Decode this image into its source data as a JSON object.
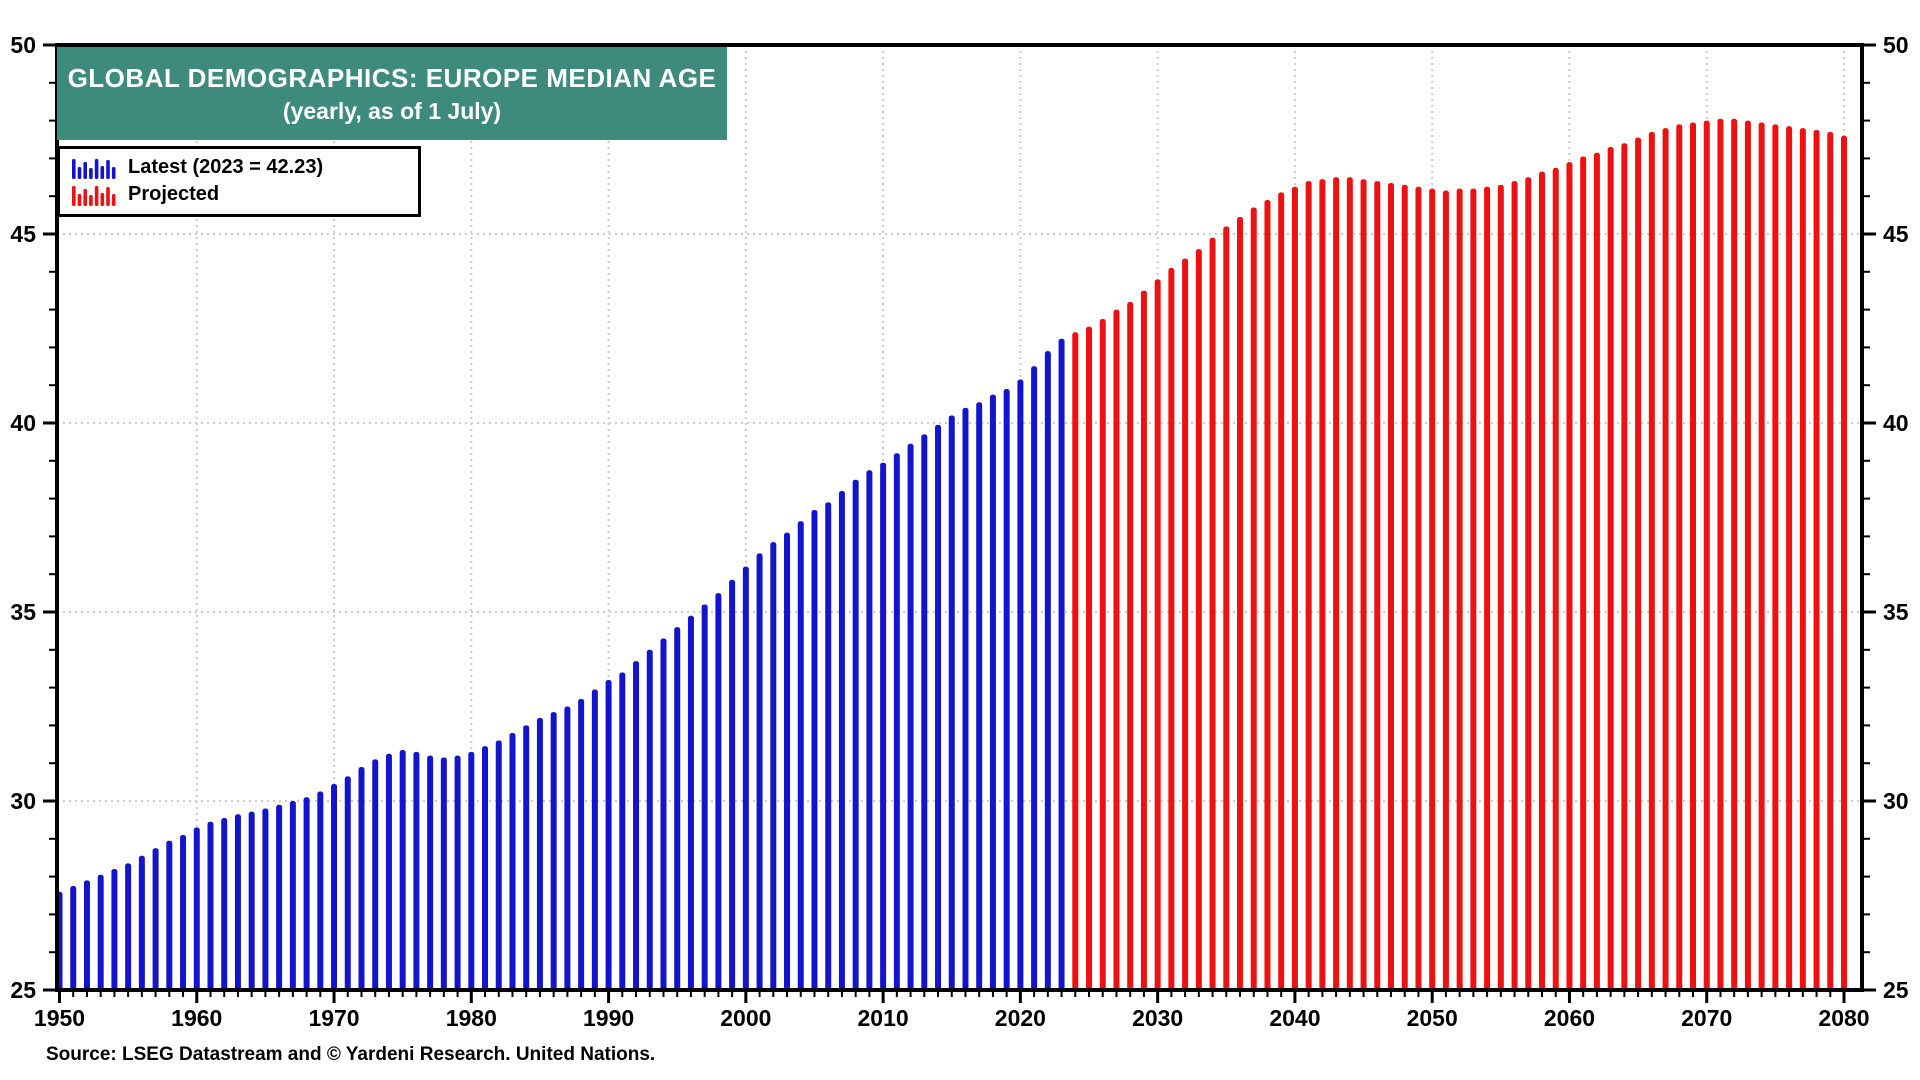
{
  "header": {
    "title": "GLOBAL DEMOGRAPHICS: EUROPE MEDIAN AGE",
    "subtitle": "(yearly, as of 1 July)"
  },
  "legend": {
    "items": [
      {
        "label": "Latest (2023 = 42.23)",
        "color": "#1414CC",
        "icon": "mini-bars-blue-icon"
      },
      {
        "label": "Projected",
        "color": "#EE1111",
        "icon": "mini-bars-red-icon"
      }
    ]
  },
  "source_note": "Source: LSEG Datastream and © Yardeni Research. United Nations.",
  "colors": {
    "banner_teal": "#3E8B7D",
    "bar_blue": "#1414CC",
    "bar_red": "#EE1111",
    "grid_gray": "#CBCBCB",
    "axis_black": "#000000"
  },
  "chart_data": {
    "type": "bar",
    "title": "GLOBAL DEMOGRAPHICS: EUROPE MEDIAN AGE",
    "subtitle": "(yearly, as of 1 July)",
    "xlabel": "",
    "ylabel": "",
    "ylim": [
      25,
      50
    ],
    "xlim": [
      1949,
      2081.5
    ],
    "y_ticks": [
      25,
      30,
      35,
      40,
      45,
      50
    ],
    "y_minor_step": 1,
    "x_ticks": [
      1950,
      1960,
      1970,
      1980,
      1990,
      2000,
      2010,
      2020,
      2030,
      2040,
      2050,
      2060,
      2070,
      2080
    ],
    "x_minor_step": 1,
    "grid": "dotted",
    "grid_h_values": [
      30,
      35,
      40,
      45
    ],
    "grid_v_values": [
      1960,
      1970,
      1980,
      1990,
      2000,
      2010,
      2020,
      2030,
      2040,
      2050,
      2060,
      2070,
      2080
    ],
    "legend_position": "top-left",
    "series": [
      {
        "name": "Latest (2023 = 42.23)",
        "color": "#1414CC",
        "start_year": 1950,
        "values": [
          27.6,
          27.75,
          27.9,
          28.05,
          28.2,
          28.35,
          28.55,
          28.75,
          28.95,
          29.1,
          29.3,
          29.45,
          29.55,
          29.65,
          29.72,
          29.8,
          29.9,
          30.0,
          30.1,
          30.25,
          30.45,
          30.65,
          30.9,
          31.1,
          31.25,
          31.35,
          31.3,
          31.2,
          31.15,
          31.2,
          31.3,
          31.45,
          31.6,
          31.8,
          32.0,
          32.2,
          32.35,
          32.5,
          32.7,
          32.95,
          33.2,
          33.4,
          33.7,
          34.0,
          34.3,
          34.6,
          34.9,
          35.2,
          35.5,
          35.85,
          36.2,
          36.55,
          36.85,
          37.1,
          37.4,
          37.7,
          37.9,
          38.2,
          38.5,
          38.75,
          38.95,
          39.2,
          39.45,
          39.7,
          39.95,
          40.2,
          40.4,
          40.55,
          40.75,
          40.9,
          41.15,
          41.5,
          41.9,
          42.23
        ]
      },
      {
        "name": "Projected",
        "color": "#EE1111",
        "start_year": 2024,
        "values": [
          42.4,
          42.55,
          42.75,
          43.0,
          43.2,
          43.5,
          43.8,
          44.1,
          44.35,
          44.6,
          44.9,
          45.2,
          45.45,
          45.7,
          45.9,
          46.1,
          46.25,
          46.4,
          46.45,
          46.5,
          46.5,
          46.45,
          46.4,
          46.35,
          46.3,
          46.25,
          46.2,
          46.15,
          46.2,
          46.2,
          46.25,
          46.3,
          46.4,
          46.5,
          46.65,
          46.75,
          46.9,
          47.05,
          47.15,
          47.3,
          47.4,
          47.55,
          47.7,
          47.8,
          47.9,
          47.95,
          48.0,
          48.05,
          48.05,
          48.0,
          47.95,
          47.9,
          47.85,
          47.8,
          47.75,
          47.7,
          47.6
        ]
      }
    ]
  }
}
